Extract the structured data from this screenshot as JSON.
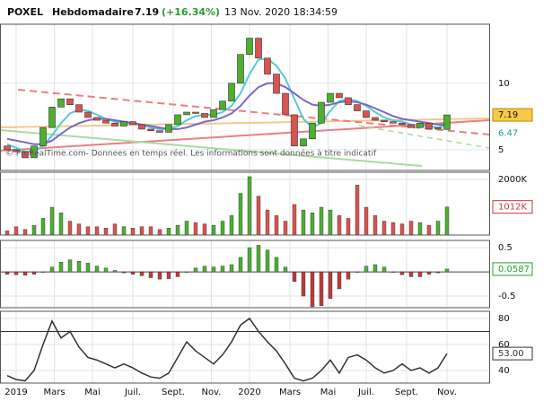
{
  "header": {
    "symbol": "POXEL",
    "period": "Hebdomadaire",
    "price": 7.19,
    "change": "(+16.34%)",
    "datetime": "13 Nov. 2020 18:34:59"
  },
  "watermark": "© ProRealTime.com- Donnees en temps réel. Les informations sont données à titre indicatif",
  "chart_data": [
    {
      "type": "candlestick",
      "log_scale": true,
      "ylim": [
        4.03,
        18.5
      ],
      "yticks": [
        5,
        10
      ],
      "up_color": "#4caf2f",
      "down_color": "#d9534f",
      "x": [
        -2,
        0,
        2,
        4,
        6,
        8,
        10,
        12,
        14,
        16,
        18,
        20,
        22,
        24,
        26,
        28,
        30,
        32,
        34,
        36,
        38,
        40,
        42,
        44,
        46,
        48,
        50,
        52,
        54,
        56,
        58,
        60,
        62,
        64,
        66,
        68,
        70,
        72,
        74,
        76,
        78,
        80,
        82,
        84,
        86,
        88,
        90,
        92,
        94,
        96
      ],
      "open": [
        5.2,
        5.0,
        4.9,
        4.6,
        5.2,
        6.3,
        7.8,
        8.5,
        8.0,
        7.4,
        7.0,
        6.8,
        6.6,
        6.4,
        6.7,
        6.5,
        6.2,
        6.1,
        6.0,
        6.5,
        7.2,
        7.4,
        7.3,
        7.0,
        7.6,
        8.3,
        10.0,
        13.5,
        16.0,
        13.0,
        11.0,
        9.0,
        7.2,
        5.2,
        5.6,
        6.6,
        8.2,
        9.0,
        8.6,
        8.0,
        7.5,
        7.0,
        6.8,
        6.7,
        6.6,
        6.5,
        6.3,
        6.6,
        6.2,
        6.18
      ],
      "close": [
        5.0,
        4.9,
        4.6,
        5.2,
        6.3,
        7.8,
        8.5,
        8.0,
        7.4,
        7.0,
        6.8,
        6.6,
        6.4,
        6.7,
        6.5,
        6.2,
        6.1,
        6.0,
        6.5,
        7.2,
        7.4,
        7.3,
        7.0,
        7.6,
        8.3,
        10.0,
        13.5,
        16.0,
        13.0,
        11.0,
        9.0,
        7.2,
        5.2,
        5.6,
        6.6,
        8.2,
        9.0,
        8.6,
        8.0,
        7.5,
        7.0,
        6.8,
        6.7,
        6.6,
        6.5,
        6.3,
        6.6,
        6.2,
        6.3,
        7.19
      ],
      "series": [
        {
          "color": "#5bc8d8",
          "values": [
            5.3,
            5.1,
            4.9,
            4.9,
            5.2,
            5.8,
            6.6,
            7.3,
            7.6,
            7.5,
            7.2,
            6.9,
            6.7,
            6.6,
            6.6,
            6.5,
            6.3,
            6.2,
            6.2,
            6.4,
            6.8,
            7.1,
            7.2,
            7.2,
            7.4,
            7.9,
            9.0,
            11.0,
            12.8,
            12.9,
            12.0,
            10.5,
            8.5,
            6.9,
            6.3,
            6.6,
            7.5,
            8.3,
            8.5,
            8.3,
            7.9,
            7.4,
            7.0,
            6.8,
            6.7,
            6.5,
            6.4,
            6.4,
            6.3,
            6.5
          ]
        },
        {
          "color": "#7b68c8",
          "values": [
            5.6,
            5.5,
            5.4,
            5.3,
            5.3,
            5.5,
            5.9,
            6.3,
            6.6,
            6.8,
            6.9,
            6.9,
            6.8,
            6.7,
            6.6,
            6.5,
            6.4,
            6.3,
            6.2,
            6.2,
            6.3,
            6.5,
            6.7,
            6.8,
            7.0,
            7.3,
            7.9,
            8.8,
            9.6,
            10.0,
            10.0,
            9.6,
            9.0,
            8.4,
            8.0,
            7.9,
            8.0,
            8.2,
            8.3,
            8.2,
            8.0,
            7.7,
            7.4,
            7.1,
            6.9,
            6.8,
            6.7,
            6.6,
            6.5,
            6.47
          ]
        }
      ]
    },
    {
      "type": "bar",
      "ylim": [
        0,
        2260
      ],
      "yticks": [
        {
          "value": 2000,
          "label": "2000K"
        }
      ],
      "x": [
        -2,
        0,
        2,
        4,
        6,
        8,
        10,
        12,
        14,
        16,
        18,
        20,
        22,
        24,
        26,
        28,
        30,
        32,
        34,
        36,
        38,
        40,
        42,
        44,
        46,
        48,
        50,
        52,
        54,
        56,
        58,
        60,
        62,
        64,
        66,
        68,
        70,
        72,
        74,
        76,
        78,
        80,
        82,
        84,
        86,
        88,
        90,
        92,
        94,
        96
      ],
      "values": [
        150,
        300,
        200,
        350,
        600,
        1000,
        800,
        500,
        400,
        300,
        300,
        250,
        400,
        300,
        250,
        300,
        300,
        200,
        250,
        350,
        500,
        450,
        400,
        350,
        500,
        700,
        1500,
        2100,
        1400,
        900,
        700,
        500,
        1100,
        900,
        800,
        1000,
        900,
        700,
        600,
        1800,
        1000,
        700,
        500,
        450,
        400,
        500,
        450,
        350,
        500,
        1012
      ],
      "value_labels": [
        null,
        null,
        null,
        null,
        null,
        null,
        null,
        null,
        null,
        null,
        null,
        null,
        null,
        null,
        null,
        null,
        null,
        null,
        null,
        null,
        null,
        null,
        null,
        null,
        null,
        null,
        null,
        null,
        null,
        null,
        null,
        null,
        null,
        null,
        null,
        null,
        null,
        null,
        null,
        null,
        null,
        null,
        null,
        null,
        null,
        null,
        null,
        null,
        null,
        "1012K"
      ]
    },
    {
      "type": "bar",
      "ylim": [
        -0.74,
        0.65
      ],
      "yticks": [
        0.5,
        -0.5
      ],
      "color": "#4caf2f",
      "negative_color": "#c0393b",
      "x": [
        -2,
        0,
        2,
        4,
        6,
        8,
        10,
        12,
        14,
        16,
        18,
        20,
        22,
        24,
        26,
        28,
        30,
        32,
        34,
        36,
        38,
        40,
        42,
        44,
        46,
        48,
        50,
        52,
        54,
        56,
        58,
        60,
        62,
        64,
        66,
        68,
        70,
        72,
        74,
        76,
        78,
        80,
        82,
        84,
        86,
        88,
        90,
        92,
        94,
        96
      ],
      "values": [
        -0.05,
        -0.06,
        -0.07,
        -0.05,
        0.0,
        0.1,
        0.2,
        0.25,
        0.22,
        0.18,
        0.12,
        0.08,
        0.03,
        -0.02,
        -0.05,
        -0.08,
        -0.12,
        -0.15,
        -0.14,
        -0.1,
        0.0,
        0.08,
        0.12,
        0.1,
        0.12,
        0.15,
        0.3,
        0.5,
        0.55,
        0.45,
        0.3,
        0.1,
        -0.2,
        -0.5,
        -0.72,
        -0.7,
        -0.55,
        -0.35,
        -0.15,
        0.0,
        0.12,
        0.15,
        0.1,
        0.0,
        -0.06,
        -0.1,
        -0.1,
        -0.05,
        -0.02,
        0.0587
      ]
    },
    {
      "type": "line",
      "ylim": [
        30.3,
        85.5
      ],
      "yticks": [
        80,
        60,
        40
      ],
      "levels": [
        70
      ],
      "color": "#333333",
      "xlim": [
        -3.6,
        105.4
      ],
      "xticks": [
        {
          "value": 0,
          "label": "2019"
        },
        {
          "value": 8.5,
          "label": "Mars"
        },
        {
          "value": 17,
          "label": "Mai"
        },
        {
          "value": 26,
          "label": "Juil."
        },
        {
          "value": 35,
          "label": "Sept."
        },
        {
          "value": 43.5,
          "label": "Nov."
        },
        {
          "value": 52,
          "label": "2020"
        },
        {
          "value": 61,
          "label": "Mars"
        },
        {
          "value": 69.5,
          "label": "Mai"
        },
        {
          "value": 78,
          "label": "Juil."
        },
        {
          "value": 87,
          "label": "Sept."
        },
        {
          "value": 96,
          "label": "Nov."
        }
      ],
      "x": [
        -2,
        0,
        2,
        4,
        6,
        8,
        10,
        12,
        14,
        16,
        18,
        20,
        22,
        24,
        26,
        28,
        30,
        32,
        34,
        36,
        38,
        40,
        42,
        44,
        46,
        48,
        50,
        52,
        54,
        56,
        58,
        60,
        62,
        64,
        66,
        68,
        70,
        72,
        74,
        76,
        78,
        80,
        82,
        84,
        86,
        88,
        90,
        92,
        94,
        96
      ],
      "values": [
        36,
        33,
        32,
        40,
        60,
        78,
        65,
        70,
        58,
        50,
        48,
        45,
        42,
        45,
        42,
        38,
        35,
        34,
        38,
        50,
        62,
        55,
        50,
        45,
        52,
        62,
        75,
        80,
        70,
        62,
        55,
        45,
        34,
        32,
        34,
        40,
        48,
        38,
        50,
        52,
        48,
        42,
        38,
        40,
        45,
        40,
        42,
        38,
        42,
        53
      ],
      "value_labels": [
        null,
        null,
        null,
        null,
        null,
        null,
        null,
        null,
        null,
        null,
        null,
        null,
        null,
        null,
        null,
        null,
        null,
        null,
        null,
        null,
        null,
        null,
        null,
        null,
        null,
        null,
        null,
        null,
        null,
        null,
        null,
        null,
        null,
        null,
        null,
        null,
        null,
        null,
        null,
        null,
        null,
        null,
        null,
        null,
        null,
        null,
        null,
        null,
        null,
        "53.00"
      ]
    }
  ]
}
